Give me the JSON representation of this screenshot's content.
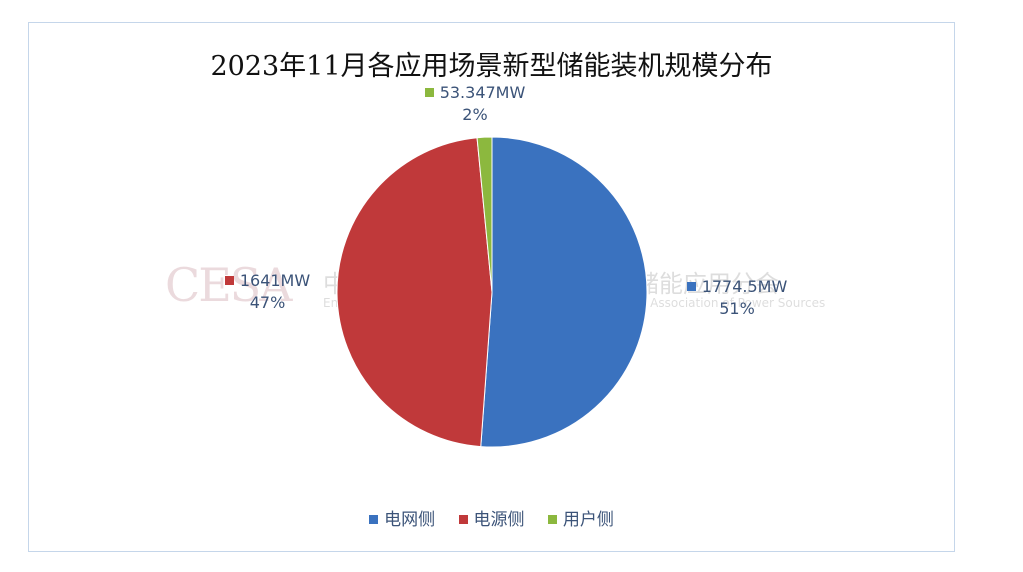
{
  "chart_data": {
    "type": "pie",
    "title": "2023年11月各应用场景新型储能装机规模分布",
    "categories": [
      "电网侧",
      "电源侧",
      "用户侧"
    ],
    "values": [
      1774.5,
      1641,
      53.347
    ],
    "data_labels": [
      {
        "value": "1774.5MW",
        "percent": "51%"
      },
      {
        "value": "1641MW",
        "percent": "47%"
      },
      {
        "value": "53.347MW",
        "percent": "2%"
      }
    ],
    "colors": [
      "#3a72bf",
      "#c0393a",
      "#8cb83e"
    ],
    "legend": "bottom"
  },
  "watermark": {
    "logo": "CESA",
    "cn": "中国化学与物理电源行业协会储能应用分会",
    "en": "Energy Storage Application Branch of China Industrial Association of Power Sources"
  }
}
